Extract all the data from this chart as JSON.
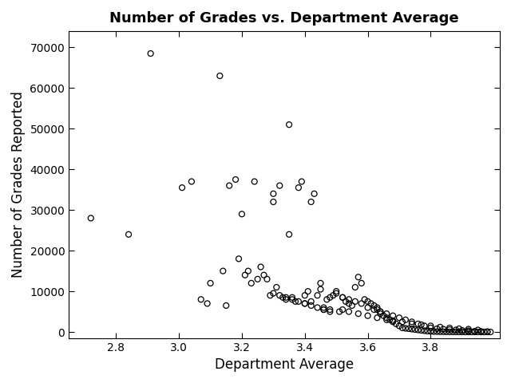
{
  "title": "Number of Grades vs. Department Average",
  "xlabel": "Department Average",
  "ylabel": "Number of Grades Reported",
  "xlim": [
    2.65,
    4.02
  ],
  "ylim": [
    -1500,
    74000
  ],
  "yticks": [
    0,
    10000,
    20000,
    30000,
    40000,
    50000,
    60000,
    70000
  ],
  "xticks": [
    2.8,
    3.0,
    3.2,
    3.4,
    3.6,
    3.8
  ],
  "background_color": "#ffffff",
  "marker_facecolor": "none",
  "marker_edge_color": "#000000",
  "marker_size": 5,
  "marker_linewidth": 0.9,
  "title_fontsize": 13,
  "label_fontsize": 12,
  "tick_fontsize": 10,
  "points_x": [
    2.72,
    2.84,
    2.91,
    3.01,
    3.04,
    3.1,
    3.13,
    3.16,
    3.18,
    3.2,
    3.22,
    3.24,
    3.26,
    3.27,
    3.28,
    3.3,
    3.3,
    3.32,
    3.33,
    3.35,
    3.35,
    3.36,
    3.38,
    3.39,
    3.4,
    3.41,
    3.42,
    3.43,
    3.44,
    3.45,
    3.45,
    3.46,
    3.47,
    3.48,
    3.49,
    3.5,
    3.5,
    3.51,
    3.52,
    3.53,
    3.54,
    3.55,
    3.56,
    3.57,
    3.58,
    3.59,
    3.6,
    3.61,
    3.62,
    3.63,
    3.63,
    3.64,
    3.64,
    3.65,
    3.66,
    3.67,
    3.68,
    3.69,
    3.7,
    3.71,
    3.72,
    3.73,
    3.74,
    3.75,
    3.76,
    3.77,
    3.78,
    3.79,
    3.8,
    3.81,
    3.82,
    3.83,
    3.84,
    3.85,
    3.86,
    3.87,
    3.88,
    3.89,
    3.9,
    3.91,
    3.92,
    3.93,
    3.94,
    3.95,
    3.96,
    3.97,
    3.98,
    3.99,
    3.07,
    3.09,
    3.14,
    3.15,
    3.19,
    3.21,
    3.23,
    3.25,
    3.29,
    3.31,
    3.34,
    3.37,
    3.4,
    3.42,
    3.46,
    3.48,
    3.52,
    3.54,
    3.57,
    3.6,
    3.63,
    3.66,
    3.68,
    3.71,
    3.74,
    3.77,
    3.8,
    3.83,
    3.86,
    3.89,
    3.92,
    3.95,
    3.52,
    3.54,
    3.56,
    3.58,
    3.6,
    3.62,
    3.64,
    3.66,
    3.68,
    3.7,
    3.72,
    3.74,
    3.76,
    3.78,
    3.8,
    3.82,
    3.84,
    3.86,
    3.88,
    3.9,
    3.92,
    3.94,
    3.96,
    3.98,
    3.3,
    3.32,
    3.34,
    3.36,
    3.38,
    3.4,
    3.42,
    3.44,
    3.46,
    3.48
  ],
  "points_y": [
    28000,
    24000,
    68500,
    35500,
    37000,
    12000,
    63000,
    36000,
    37500,
    29000,
    15000,
    37000,
    16000,
    14000,
    13000,
    32000,
    34000,
    36000,
    8500,
    51000,
    24000,
    8500,
    35500,
    37000,
    9000,
    10000,
    32000,
    34000,
    9000,
    10500,
    12000,
    5500,
    8000,
    8500,
    9000,
    9500,
    10000,
    5000,
    8500,
    7500,
    7000,
    6500,
    11000,
    13500,
    12000,
    8000,
    7500,
    7000,
    6500,
    6000,
    5500,
    5000,
    4500,
    4000,
    3500,
    3000,
    2500,
    2000,
    1500,
    1000,
    900,
    800,
    700,
    600,
    500,
    400,
    300,
    200,
    150,
    100,
    80,
    60,
    50,
    40,
    30,
    20,
    15,
    10,
    8,
    6,
    4,
    3,
    2,
    1,
    1,
    1,
    1,
    1,
    8000,
    7000,
    15000,
    6500,
    18000,
    14000,
    12000,
    13000,
    9000,
    11000,
    8000,
    7500,
    7000,
    7500,
    6000,
    5500,
    5500,
    5000,
    4500,
    4000,
    3500,
    3000,
    2800,
    2500,
    2000,
    1800,
    1500,
    1200,
    1000,
    800,
    700,
    500,
    8500,
    8000,
    7500,
    7000,
    6000,
    5500,
    5000,
    4500,
    4000,
    3500,
    3000,
    2500,
    2000,
    1500,
    1000,
    800,
    700,
    600,
    500,
    400,
    300,
    200,
    150,
    100,
    9500,
    9000,
    8500,
    8000,
    7500,
    7000,
    6500,
    6000,
    5500,
    5000
  ]
}
